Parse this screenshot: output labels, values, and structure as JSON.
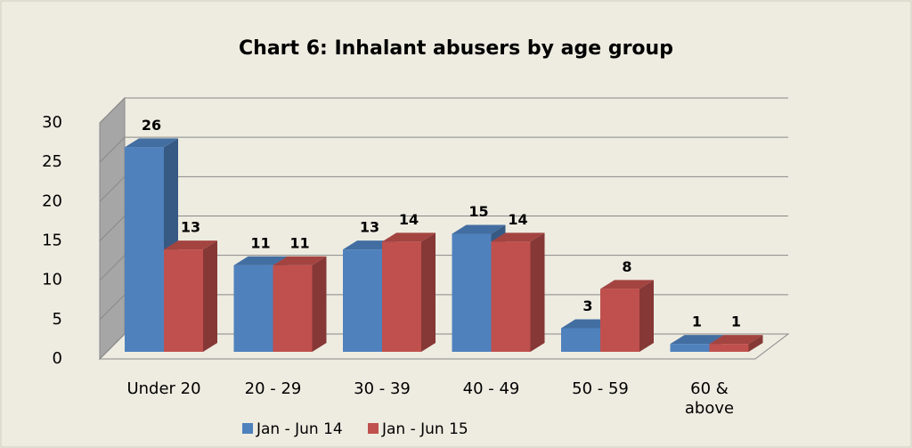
{
  "chart_data": {
    "type": "bar3d",
    "title": "Chart 6: Inhalant abusers by age group",
    "categories": [
      "Under 20",
      "20 - 29",
      "30 - 39",
      "40 - 49",
      "50 - 59",
      "60 &\nabove"
    ],
    "series": [
      {
        "name": "Jan - Jun 14",
        "color": "#4f81bd",
        "values": [
          26,
          11,
          13,
          15,
          3,
          1
        ]
      },
      {
        "name": "Jan - Jun 15",
        "color": "#c0504d",
        "values": [
          13,
          11,
          14,
          14,
          8,
          1
        ]
      }
    ],
    "ylim": [
      0,
      30
    ],
    "yticks": [
      0,
      5,
      10,
      15,
      20,
      25,
      30
    ],
    "grid": true,
    "legend": "bottom"
  }
}
